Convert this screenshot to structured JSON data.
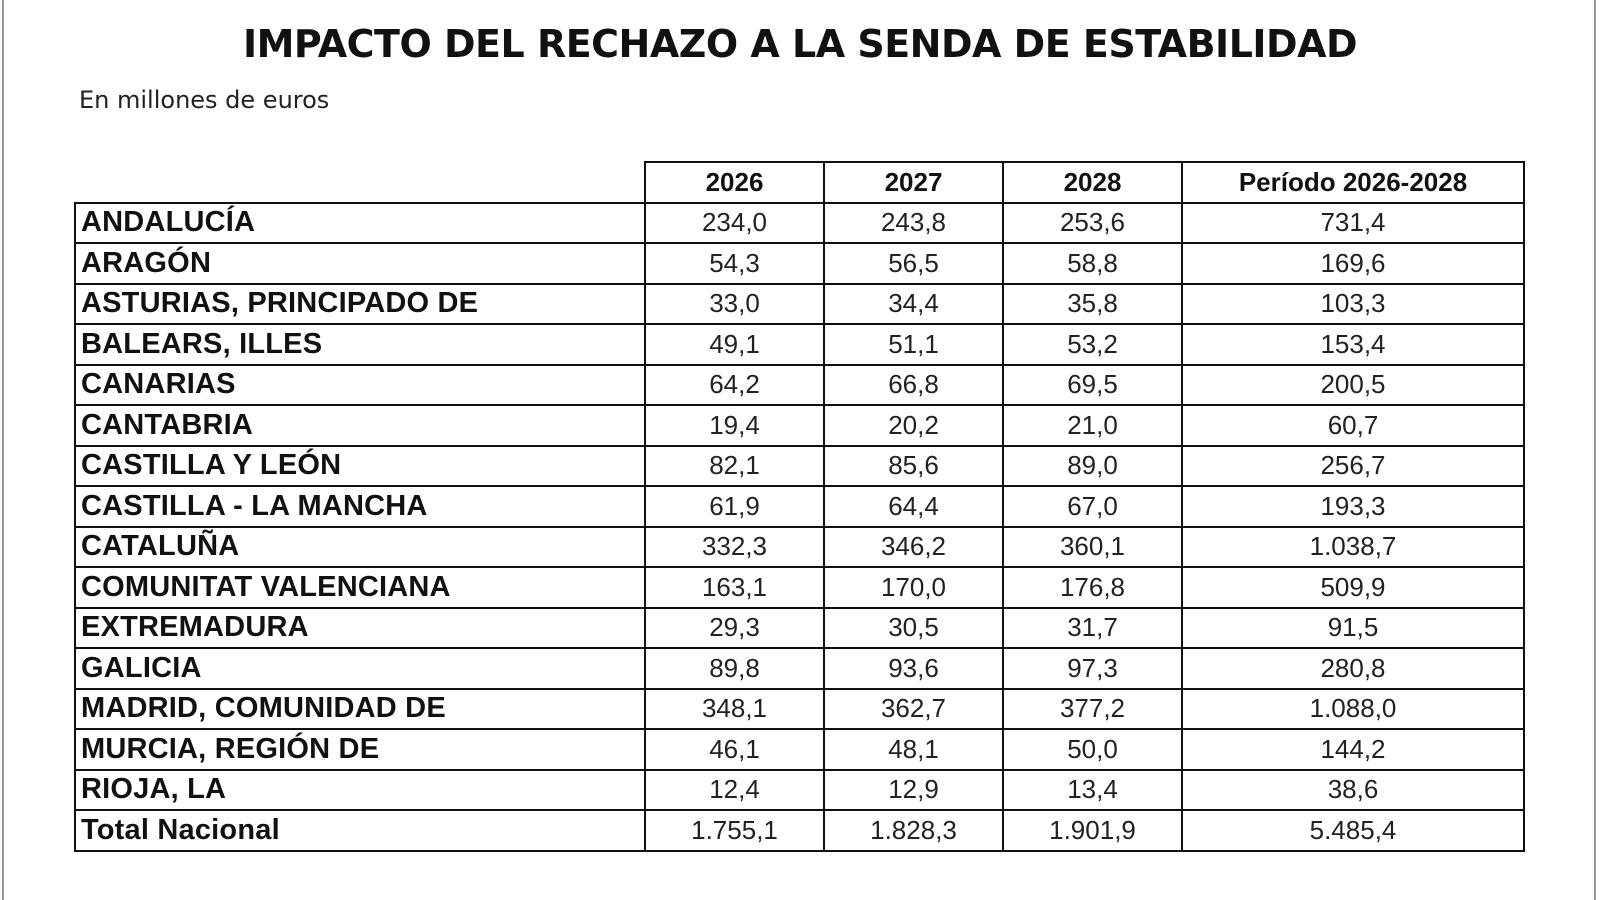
{
  "title": "IMPACTO DEL RECHAZO A LA SENDA DE ESTABILIDAD",
  "subtitle": "En millones de euros",
  "chart_data": {
    "type": "table",
    "title": "IMPACTO DEL RECHAZO A LA SENDA DE ESTABILIDAD",
    "subtitle": "En millones de euros",
    "columns": [
      "2026",
      "2027",
      "2028",
      "Período 2026-2028"
    ],
    "rows": [
      {
        "label": "ANDALUCÍA",
        "values": [
          "234,0",
          "243,8",
          "253,6",
          "731,4"
        ]
      },
      {
        "label": "ARAGÓN",
        "values": [
          "54,3",
          "56,5",
          "58,8",
          "169,6"
        ]
      },
      {
        "label": "ASTURIAS, PRINCIPADO DE",
        "values": [
          "33,0",
          "34,4",
          "35,8",
          "103,3"
        ]
      },
      {
        "label": "BALEARS, ILLES",
        "values": [
          "49,1",
          "51,1",
          "53,2",
          "153,4"
        ]
      },
      {
        "label": "CANARIAS",
        "values": [
          "64,2",
          "66,8",
          "69,5",
          "200,5"
        ]
      },
      {
        "label": "CANTABRIA",
        "values": [
          "19,4",
          "20,2",
          "21,0",
          "60,7"
        ]
      },
      {
        "label": "CASTILLA Y LEÓN",
        "values": [
          "82,1",
          "85,6",
          "89,0",
          "256,7"
        ]
      },
      {
        "label": "CASTILLA - LA MANCHA",
        "values": [
          "61,9",
          "64,4",
          "67,0",
          "193,3"
        ]
      },
      {
        "label": "CATALUÑA",
        "values": [
          "332,3",
          "346,2",
          "360,1",
          "1.038,7"
        ]
      },
      {
        "label": "COMUNITAT VALENCIANA",
        "values": [
          "163,1",
          "170,0",
          "176,8",
          "509,9"
        ]
      },
      {
        "label": "EXTREMADURA",
        "values": [
          "29,3",
          "30,5",
          "31,7",
          "91,5"
        ]
      },
      {
        "label": "GALICIA",
        "values": [
          "89,8",
          "93,6",
          "97,3",
          "280,8"
        ]
      },
      {
        "label": "MADRID, COMUNIDAD DE",
        "values": [
          "348,1",
          "362,7",
          "377,2",
          "1.088,0"
        ]
      },
      {
        "label": "MURCIA, REGIÓN DE",
        "values": [
          "46,1",
          "48,1",
          "50,0",
          "144,2"
        ]
      },
      {
        "label": "RIOJA, LA",
        "values": [
          "12,4",
          "12,9",
          "13,4",
          "38,6"
        ]
      },
      {
        "label": "Total Nacional",
        "values": [
          "1.755,1",
          "1.828,3",
          "1.901,9",
          "5.485,4"
        ]
      }
    ]
  }
}
